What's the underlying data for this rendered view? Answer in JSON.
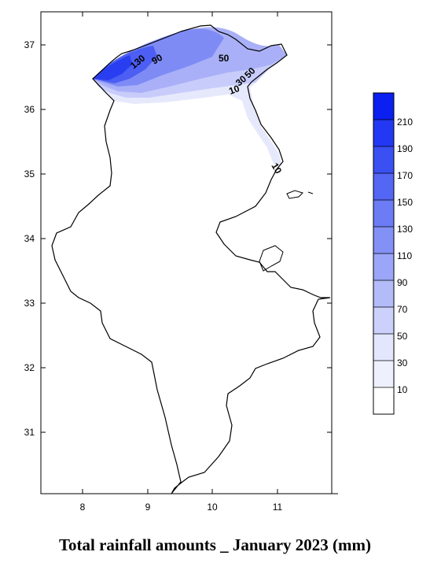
{
  "title": "Total rainfall amounts _ January 2023 (mm)",
  "axes": {
    "x_ticks": [
      "8",
      "9",
      "10",
      "11"
    ],
    "y_ticks": [
      "37",
      "36",
      "35",
      "34",
      "33",
      "32",
      "31"
    ]
  },
  "contour_labels": [
    "130",
    "90",
    "50",
    "50",
    "30",
    "10",
    "10"
  ],
  "legend": {
    "labels": [
      "210",
      "190",
      "170",
      "150",
      "130",
      "110",
      "90",
      "70",
      "50",
      "30",
      "10"
    ],
    "colors": [
      "#0a1ff0",
      "#2238f2",
      "#3b50f3",
      "#5366f4",
      "#6b7cf5",
      "#8391f6",
      "#9ba6f8",
      "#b3bbf9",
      "#cbd1fb",
      "#e3e6fd",
      "#ffffff"
    ]
  },
  "colors": {
    "rain_low": "#e6e8fc",
    "rain_mid": "#9ca5f6",
    "rain_high": "#1f36f0"
  }
}
